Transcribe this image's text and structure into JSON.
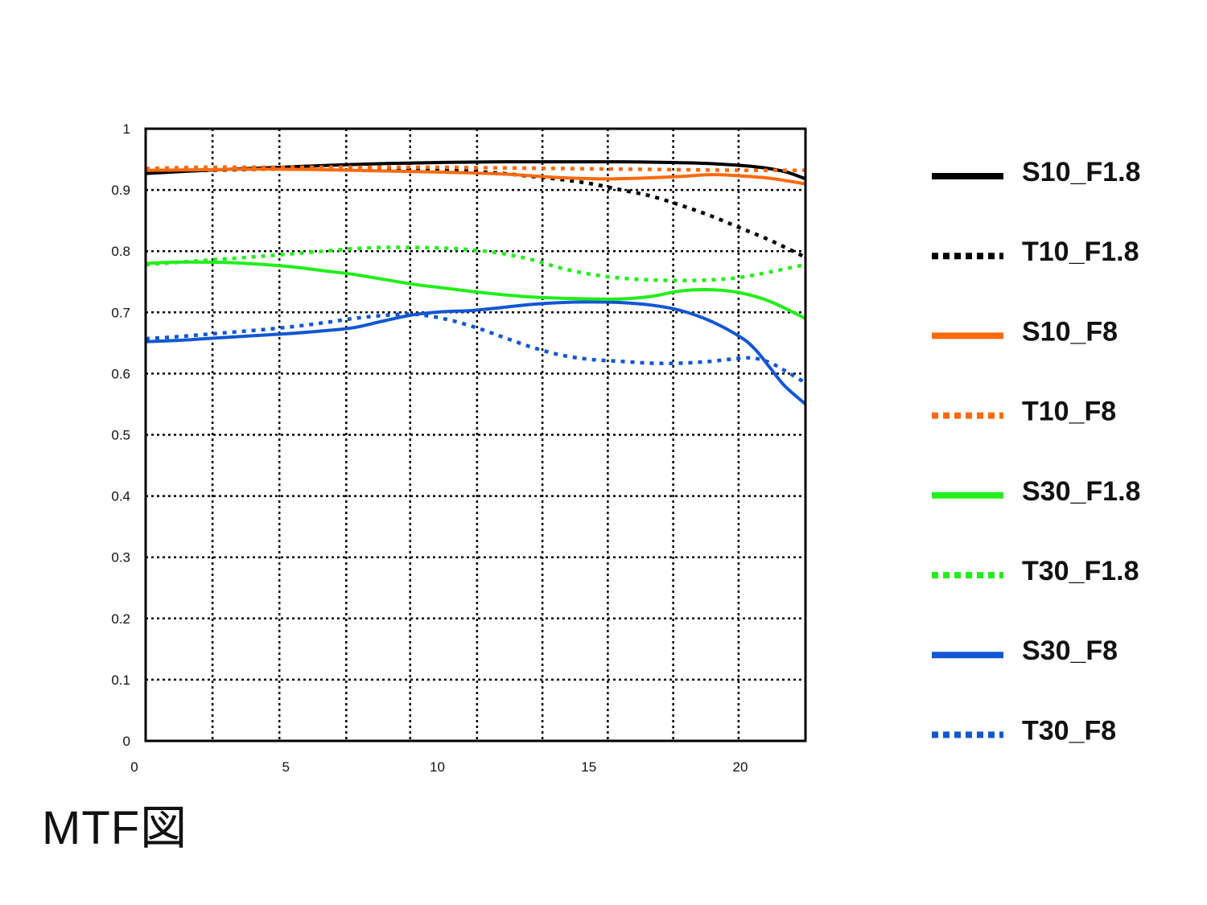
{
  "caption": "MTF図",
  "chart_data": {
    "type": "line",
    "title": "",
    "xlabel": "",
    "ylabel": "",
    "xlim": [
      0,
      22.2
    ],
    "ylim": [
      0,
      1
    ],
    "x_ticks": [
      0,
      5,
      10,
      15,
      20
    ],
    "y_ticks": [
      0,
      0.1,
      0.2,
      0.3,
      0.4,
      0.5,
      0.6,
      0.7,
      0.8,
      0.9,
      1
    ],
    "y_tick_labels": [
      "0",
      "0.1",
      "0.2",
      "0.3",
      "0.4",
      "0.5",
      "0.6",
      "0.7",
      "0.8",
      "0.9",
      "1"
    ],
    "x_grid": [
      2.25,
      4.5,
      6.75,
      8.9,
      11.15,
      13.35,
      15.55,
      17.75,
      19.95
    ],
    "grid": true,
    "legend_position": "right",
    "series": [
      {
        "name": "S10_F1.8",
        "color": "#000000",
        "style": "solid",
        "x": [
          0,
          2,
          4,
          6,
          8,
          10,
          12,
          14,
          16,
          17.5,
          19,
          20.5,
          21.5,
          22.2
        ],
        "y": [
          0.927,
          0.932,
          0.936,
          0.94,
          0.943,
          0.945,
          0.946,
          0.946,
          0.946,
          0.945,
          0.943,
          0.938,
          0.93,
          0.918
        ]
      },
      {
        "name": "T10_F1.8",
        "color": "#000000",
        "style": "dotted",
        "x": [
          0,
          2,
          4,
          6,
          8,
          9,
          10,
          11,
          12,
          13,
          14,
          15,
          16,
          17,
          18,
          19,
          20,
          21,
          22.2
        ],
        "y": [
          0.93,
          0.932,
          0.934,
          0.935,
          0.935,
          0.935,
          0.933,
          0.93,
          0.927,
          0.922,
          0.917,
          0.91,
          0.9,
          0.89,
          0.875,
          0.858,
          0.838,
          0.818,
          0.79
        ]
      },
      {
        "name": "S10_F8",
        "color": "#fd6a0e",
        "style": "solid",
        "x": [
          0,
          2,
          4,
          6,
          8,
          10,
          12,
          14,
          15.5,
          16.5,
          18,
          19,
          20,
          21,
          22.2
        ],
        "y": [
          0.932,
          0.933,
          0.934,
          0.933,
          0.931,
          0.929,
          0.926,
          0.92,
          0.918,
          0.919,
          0.922,
          0.925,
          0.923,
          0.919,
          0.91
        ]
      },
      {
        "name": "T10_F8",
        "color": "#fd6a0e",
        "style": "dotted",
        "x": [
          0,
          2,
          4,
          6,
          8,
          10,
          12,
          14,
          16,
          18,
          20,
          21,
          22.2
        ],
        "y": [
          0.935,
          0.937,
          0.937,
          0.937,
          0.937,
          0.937,
          0.936,
          0.935,
          0.934,
          0.933,
          0.932,
          0.932,
          0.932
        ]
      },
      {
        "name": "S30_F1.8",
        "color": "#22ee1a",
        "style": "solid",
        "x": [
          0,
          1,
          2,
          3,
          4,
          5,
          6,
          7,
          8,
          9,
          10,
          11,
          12,
          13,
          14,
          15,
          16,
          17,
          18,
          19,
          20,
          21,
          22.2
        ],
        "y": [
          0.78,
          0.782,
          0.782,
          0.781,
          0.778,
          0.774,
          0.768,
          0.762,
          0.754,
          0.746,
          0.74,
          0.734,
          0.729,
          0.725,
          0.723,
          0.722,
          0.722,
          0.726,
          0.735,
          0.737,
          0.732,
          0.718,
          0.69
        ]
      },
      {
        "name": "T30_F1.8",
        "color": "#22ee1a",
        "style": "dotted",
        "x": [
          0,
          2,
          4,
          6,
          7,
          8,
          9,
          10,
          11,
          12,
          13,
          14,
          15,
          16,
          17,
          18,
          19,
          20,
          21,
          22.2
        ],
        "y": [
          0.778,
          0.785,
          0.792,
          0.8,
          0.804,
          0.806,
          0.806,
          0.805,
          0.802,
          0.796,
          0.786,
          0.772,
          0.762,
          0.756,
          0.753,
          0.752,
          0.753,
          0.757,
          0.766,
          0.778
        ]
      },
      {
        "name": "S30_F8",
        "color": "#1256d2",
        "style": "solid",
        "x": [
          0,
          1,
          2,
          3,
          4,
          5,
          6,
          7,
          8,
          9,
          10,
          11,
          12,
          13,
          14,
          15,
          16,
          17,
          18,
          19,
          20,
          20.5,
          21,
          21.5,
          22.2
        ],
        "y": [
          0.652,
          0.654,
          0.657,
          0.66,
          0.663,
          0.666,
          0.67,
          0.675,
          0.686,
          0.696,
          0.701,
          0.703,
          0.708,
          0.713,
          0.716,
          0.717,
          0.716,
          0.712,
          0.703,
          0.686,
          0.66,
          0.64,
          0.61,
          0.58,
          0.55
        ]
      },
      {
        "name": "T30_F8",
        "color": "#1256d2",
        "style": "dotted",
        "x": [
          0,
          1,
          2,
          3,
          4,
          5,
          6,
          7,
          8,
          9,
          10,
          11,
          12,
          13,
          14,
          15,
          16,
          17,
          18,
          19,
          20,
          20.5,
          21,
          21.5,
          22.2
        ],
        "y": [
          0.657,
          0.66,
          0.664,
          0.668,
          0.672,
          0.677,
          0.683,
          0.69,
          0.695,
          0.697,
          0.69,
          0.677,
          0.66,
          0.643,
          0.63,
          0.623,
          0.62,
          0.617,
          0.617,
          0.62,
          0.625,
          0.625,
          0.618,
          0.605,
          0.585
        ]
      }
    ]
  }
}
